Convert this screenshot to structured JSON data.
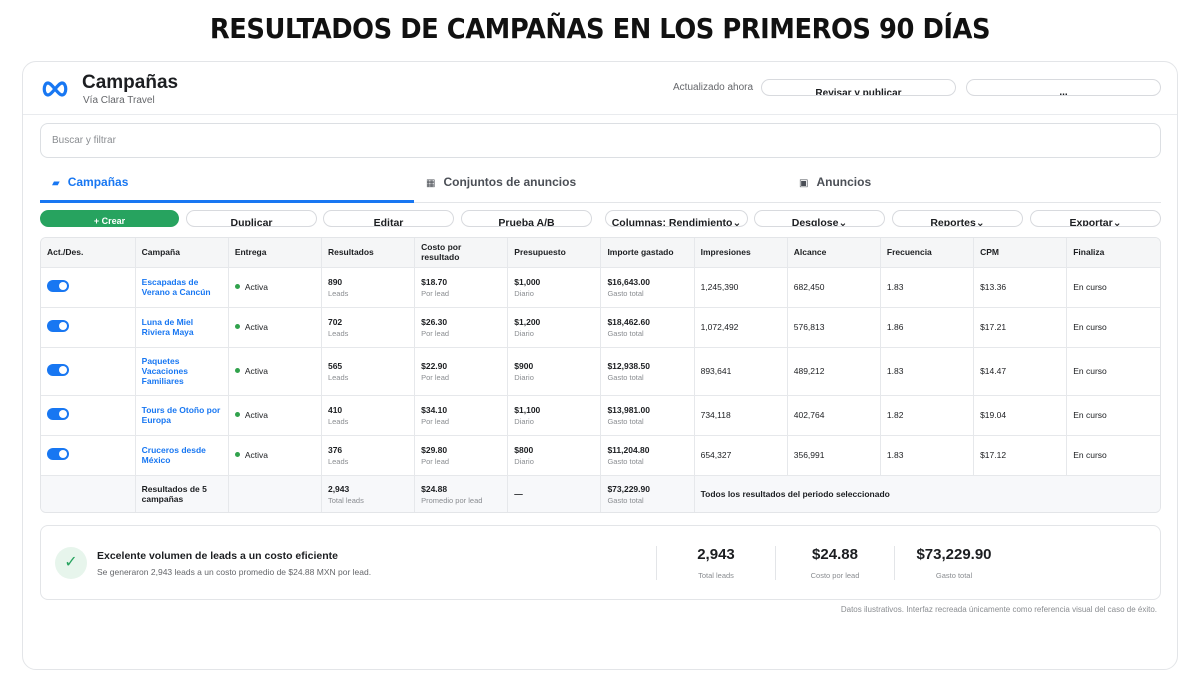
{
  "banner": {
    "title": "RESULTADOS DE CAMPAÑAS EN LOS PRIMEROS 90 DÍAS"
  },
  "header": {
    "title": "Campañas",
    "subtitle": "Vía Clara Travel",
    "updated": "Actualizado ahora",
    "review_button": "Revisar y publicar",
    "more_button": "..."
  },
  "search": {
    "placeholder": "Buscar y filtrar"
  },
  "tabs": [
    {
      "label": "Campañas",
      "icon": "folder-icon",
      "active": true
    },
    {
      "label": "Conjuntos de anuncios",
      "icon": "grid-icon",
      "active": false
    },
    {
      "label": "Anuncios",
      "icon": "ad-icon",
      "active": false
    }
  ],
  "toolbar": {
    "create": "+ Crear",
    "duplicate": "Duplicar",
    "edit": "Editar",
    "ab_test": "Prueba A/B",
    "columns": "Columnas: Rendimiento",
    "breakdown": "Desglose",
    "reports": "Reportes",
    "export": "Exportar"
  },
  "table": {
    "headers": [
      "Act./Des.",
      "Campaña",
      "Entrega",
      "Resultados",
      "Costo por resultado",
      "Presupuesto",
      "Importe gastado",
      "Impresiones",
      "Alcance",
      "Frecuencia",
      "CPM",
      "Finaliza"
    ],
    "rows": [
      {
        "name": "Escapadas de Verano a Cancún",
        "status": "Activa",
        "results": "890",
        "results_sub": "Leads",
        "cpr": "$18.70",
        "cpr_sub": "Por lead",
        "budget": "$1,000",
        "budget_sub": "Diario",
        "spent": "$16,643.00",
        "spent_sub": "Gasto total",
        "impressions": "1,245,390",
        "reach": "682,450",
        "frequency": "1.83",
        "cpm": "$13.36",
        "ends": "En curso"
      },
      {
        "name": "Luna de Miel Riviera Maya",
        "status": "Activa",
        "results": "702",
        "results_sub": "Leads",
        "cpr": "$26.30",
        "cpr_sub": "Por lead",
        "budget": "$1,200",
        "budget_sub": "Diario",
        "spent": "$18,462.60",
        "spent_sub": "Gasto total",
        "impressions": "1,072,492",
        "reach": "576,813",
        "frequency": "1.86",
        "cpm": "$17.21",
        "ends": "En curso"
      },
      {
        "name": "Paquetes Vacaciones Familiares",
        "status": "Activa",
        "results": "565",
        "results_sub": "Leads",
        "cpr": "$22.90",
        "cpr_sub": "Por lead",
        "budget": "$900",
        "budget_sub": "Diario",
        "spent": "$12,938.50",
        "spent_sub": "Gasto total",
        "impressions": "893,641",
        "reach": "489,212",
        "frequency": "1.83",
        "cpm": "$14.47",
        "ends": "En curso"
      },
      {
        "name": "Tours de Otoño por Europa",
        "status": "Activa",
        "results": "410",
        "results_sub": "Leads",
        "cpr": "$34.10",
        "cpr_sub": "Por lead",
        "budget": "$1,100",
        "budget_sub": "Diario",
        "spent": "$13,981.00",
        "spent_sub": "Gasto total",
        "impressions": "734,118",
        "reach": "402,764",
        "frequency": "1.82",
        "cpm": "$19.04",
        "ends": "En curso"
      },
      {
        "name": "Cruceros desde México",
        "status": "Activa",
        "results": "376",
        "results_sub": "Leads",
        "cpr": "$29.80",
        "cpr_sub": "Por lead",
        "budget": "$800",
        "budget_sub": "Diario",
        "spent": "$11,204.80",
        "spent_sub": "Gasto total",
        "impressions": "654,327",
        "reach": "356,991",
        "frequency": "1.83",
        "cpm": "$17.12",
        "ends": "En curso"
      }
    ],
    "total": {
      "label": "Resultados de 5 campañas",
      "results": "2,943",
      "results_sub": "Total leads",
      "cpr": "$24.88",
      "cpr_sub": "Promedio por lead",
      "budget": "—",
      "spent": "$73,229.90",
      "spent_sub": "Gasto total",
      "note": "Todos los resultados del periodo seleccionado"
    }
  },
  "summary": {
    "title": "Excelente volumen de leads a un costo eficiente",
    "description": "Se generaron 2,943 leads a un costo promedio de $24.88 MXN por lead.",
    "kpis": [
      {
        "value": "2,943",
        "label": "Total leads"
      },
      {
        "value": "$24.88",
        "label": "Costo por lead"
      },
      {
        "value": "$73,229.90",
        "label": "Gasto total"
      }
    ]
  },
  "footnote": "Datos ilustrativos. Interfaz recreada únicamente como referencia visual del caso de éxito.",
  "colors": {
    "accent": "#1877f2",
    "success": "#27a35f",
    "active_dot": "#31a24c"
  }
}
